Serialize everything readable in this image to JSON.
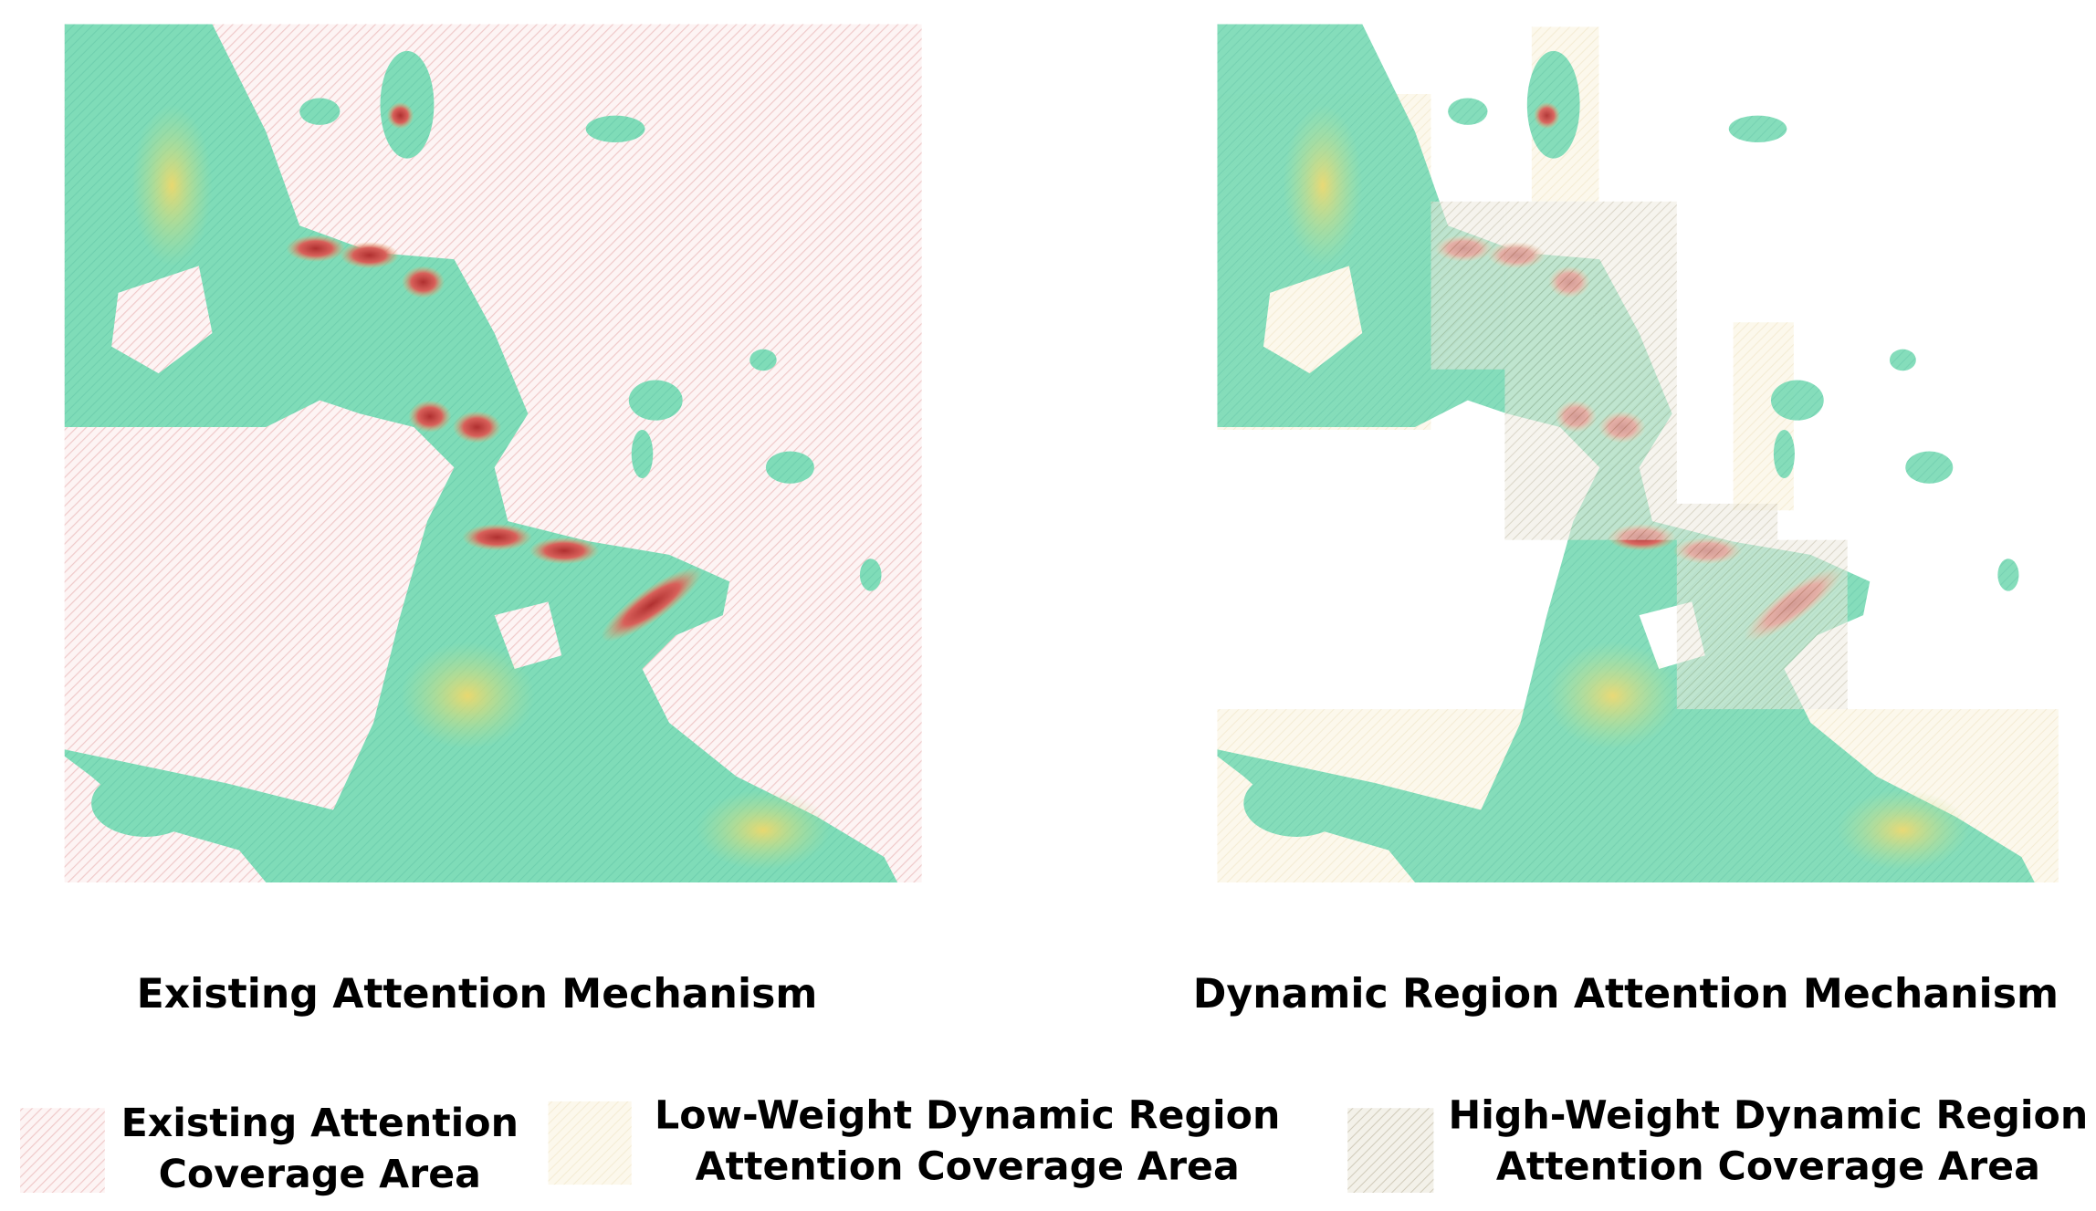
{
  "panels": [
    {
      "title": "Existing Attention Mechanism"
    },
    {
      "title": "Dynamic Region Attention Mechanism"
    }
  ],
  "legend": [
    {
      "lines": [
        "Existing Attention",
        "Coverage Area"
      ]
    },
    {
      "lines": [
        "Low-Weight Dynamic Region",
        "Attention Coverage Area"
      ]
    },
    {
      "lines": [
        "High-Weight Dynamic Region",
        "Attention Coverage Area"
      ]
    }
  ]
}
